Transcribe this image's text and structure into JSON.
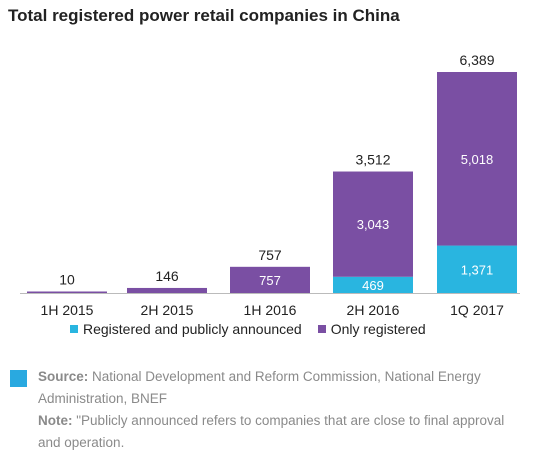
{
  "title": "Total registered power retail companies in China",
  "chart_data": {
    "type": "bar",
    "stacked": true,
    "categories": [
      "1H 2015",
      "2H 2015",
      "1H 2016",
      "2H 2016",
      "1Q 2017"
    ],
    "series": [
      {
        "name": "Registered and publicly announced",
        "values": [
          0,
          0,
          0,
          469,
          1371
        ],
        "color": "#29b5e0"
      },
      {
        "name": "Only registered",
        "values": [
          10,
          146,
          757,
          3043,
          5018
        ],
        "color": "#7a4fa3"
      }
    ],
    "totals": [
      10,
      146,
      757,
      3512,
      6389
    ],
    "segment_labels": {
      "registered": [
        "",
        "",
        "",
        "469",
        "1,371"
      ],
      "only": [
        "",
        "",
        "757",
        "3,043",
        "5,018"
      ]
    },
    "total_labels": [
      "10",
      "146",
      "757",
      "3,512",
      "6,389"
    ],
    "ylim": [
      0,
      6389
    ],
    "grid": false,
    "legend_position": "bottom"
  },
  "legend": [
    {
      "label": "Registered and publicly announced",
      "color": "#29b5e0"
    },
    {
      "label": "Only registered",
      "color": "#7a4fa3"
    }
  ],
  "notes": {
    "source_label": "Source:",
    "source_text": " National Development and Reform Commission, National Energy Administration, BNEF",
    "note_label": "Note:",
    "note_text": " \"Publicly announced refers to companies that are close to final approval and operation."
  }
}
